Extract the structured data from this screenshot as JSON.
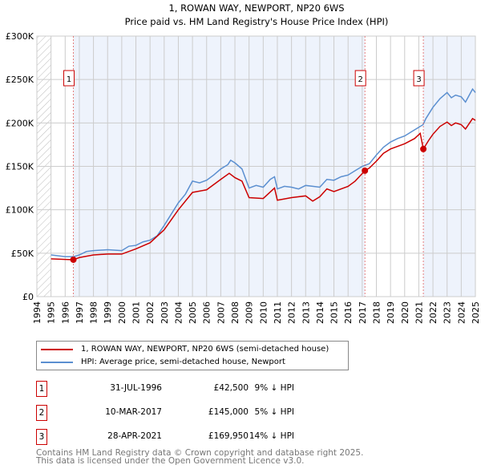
{
  "chart_data": {
    "type": "line",
    "title": "1, ROWAN WAY, NEWPORT, NP20 6WS",
    "subtitle": "Price paid vs. HM Land Registry's House Price Index (HPI)",
    "xlim": [
      1994,
      2025
    ],
    "ylim": [
      0,
      300000
    ],
    "ytick_labels": [
      "£0",
      "£50K",
      "£100K",
      "£150K",
      "£200K",
      "£250K",
      "£300K"
    ],
    "ytick_values": [
      0,
      50000,
      100000,
      150000,
      200000,
      250000,
      300000
    ],
    "xtick_labels": [
      "1994",
      "1995",
      "1996",
      "1997",
      "1998",
      "1999",
      "2000",
      "2001",
      "2002",
      "2003",
      "2004",
      "2005",
      "2006",
      "2007",
      "2008",
      "2009",
      "2010",
      "2011",
      "2012",
      "2013",
      "2014",
      "2015",
      "2016",
      "2017",
      "2018",
      "2019",
      "2020",
      "2021",
      "2022",
      "2023",
      "2024",
      "2025"
    ],
    "grid": true,
    "series": [
      {
        "name": "1, ROWAN WAY, NEWPORT, NP20 6WS (semi-detached house)",
        "color": "#cc0000",
        "x": [
          1995,
          1996.58,
          1997,
          1998,
          1999,
          2000,
          2001,
          2002,
          2003,
          2004,
          2005,
          2006,
          2007,
          2007.6,
          2008,
          2008.5,
          2009,
          2010,
          2010.8,
          2011,
          2012,
          2013,
          2013.5,
          2014,
          2014.5,
          2015,
          2016,
          2016.5,
          2017.19,
          2017.5,
          2018,
          2018.5,
          2019,
          2020,
          2020.7,
          2021.1,
          2021.32,
          2021.7,
          2022,
          2022.5,
          2023,
          2023.3,
          2023.6,
          2024,
          2024.3,
          2024.8,
          2025
        ],
        "y": [
          43500,
          42500,
          45000,
          48000,
          49000,
          49000,
          55000,
          62000,
          77000,
          100000,
          120000,
          123000,
          135000,
          142000,
          137000,
          133000,
          114000,
          113000,
          125000,
          111000,
          114000,
          116000,
          110000,
          115000,
          124000,
          121000,
          127000,
          133000,
          145000,
          148000,
          156000,
          165000,
          170000,
          176000,
          182000,
          188000,
          169950,
          180000,
          187000,
          196000,
          201000,
          197000,
          200000,
          198000,
          193000,
          205000,
          203000
        ]
      },
      {
        "name": "HPI: Average price, semi-detached house, Newport",
        "color": "#5b8fd0",
        "x": [
          1995,
          1996,
          1996.6,
          1997,
          1997.5,
          1998,
          1999,
          2000,
          2000.5,
          2001,
          2001.5,
          2002,
          2002.5,
          2003,
          2003.5,
          2004,
          2004.5,
          2005,
          2005.5,
          2006,
          2006.5,
          2007,
          2007.5,
          2007.7,
          2008,
          2008.5,
          2009,
          2009.5,
          2010,
          2010.5,
          2010.8,
          2011,
          2011.5,
          2012,
          2012.5,
          2013,
          2013.5,
          2014,
          2014.5,
          2015,
          2015.5,
          2016,
          2016.5,
          2017,
          2017.5,
          2018,
          2018.5,
          2019,
          2019.5,
          2020,
          2020.5,
          2021,
          2021.3,
          2021.5,
          2022,
          2022.5,
          2023,
          2023.3,
          2023.6,
          2024,
          2024.3,
          2024.8,
          2025
        ],
        "y": [
          48000,
          46000,
          46000,
          48000,
          52000,
          53000,
          54000,
          53000,
          58000,
          59000,
          63000,
          65000,
          70000,
          82000,
          95000,
          108000,
          118000,
          133000,
          131000,
          134000,
          140000,
          147000,
          152000,
          157000,
          154000,
          147000,
          125000,
          128000,
          126000,
          135000,
          138000,
          124000,
          127000,
          126000,
          124000,
          128000,
          127000,
          126000,
          135000,
          134000,
          138000,
          140000,
          145000,
          150000,
          153000,
          163000,
          172000,
          178000,
          182000,
          185000,
          190000,
          195000,
          198000,
          205000,
          218000,
          228000,
          235000,
          229000,
          232000,
          230000,
          224000,
          239000,
          235000
        ]
      }
    ],
    "sales": [
      {
        "label": "1",
        "x": 1996.58,
        "y": 42500
      },
      {
        "label": "2",
        "x": 2017.19,
        "y": 145000
      },
      {
        "label": "3",
        "x": 2021.32,
        "y": 169950
      }
    ]
  },
  "legend": {
    "red": "1, ROWAN WAY, NEWPORT, NP20 6WS (semi-detached house)",
    "blue": "HPI: Average price, semi-detached house, Newport"
  },
  "table": [
    {
      "n": "1",
      "date": "31-JUL-1996",
      "price": "£42,500",
      "hpi": "9% ↓ HPI"
    },
    {
      "n": "2",
      "date": "10-MAR-2017",
      "price": "£145,000",
      "hpi": "5% ↓ HPI"
    },
    {
      "n": "3",
      "date": "28-APR-2021",
      "price": "£169,950",
      "hpi": "14% ↓ HPI"
    }
  ],
  "footer": {
    "line1": "Contains HM Land Registry data © Crown copyright and database right 2025.",
    "line2": "This data is licensed under the Open Government Licence v3.0."
  }
}
